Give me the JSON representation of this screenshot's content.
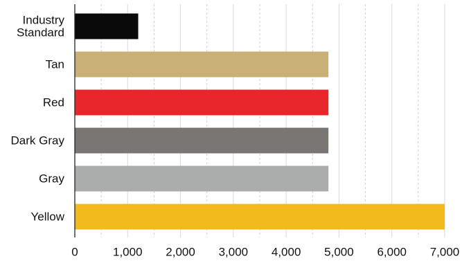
{
  "chart_data": {
    "type": "bar",
    "orientation": "horizontal",
    "title": "",
    "xlabel": "",
    "ylabel": "",
    "categories": [
      [
        "Industry",
        "Standard"
      ],
      [
        "Tan"
      ],
      [
        "Red"
      ],
      [
        "Dark Gray"
      ],
      [
        "Gray"
      ],
      [
        "Yellow"
      ]
    ],
    "values": [
      1200,
      4800,
      4800,
      4800,
      4800,
      7000
    ],
    "colors": [
      "#0a0a0a",
      "#c8b077",
      "#e8262b",
      "#7a7674",
      "#abacac",
      "#f2ba1c"
    ],
    "xlim": [
      0,
      7000
    ],
    "ticks": [
      0,
      1000,
      2000,
      3000,
      4000,
      5000,
      6000,
      7000
    ],
    "tick_labels": [
      "0",
      "1,000",
      "2,000",
      "3,000",
      "4,000",
      "5,000",
      "6,000",
      "7,000"
    ],
    "grid": "vertical dashed",
    "legend": "none"
  }
}
